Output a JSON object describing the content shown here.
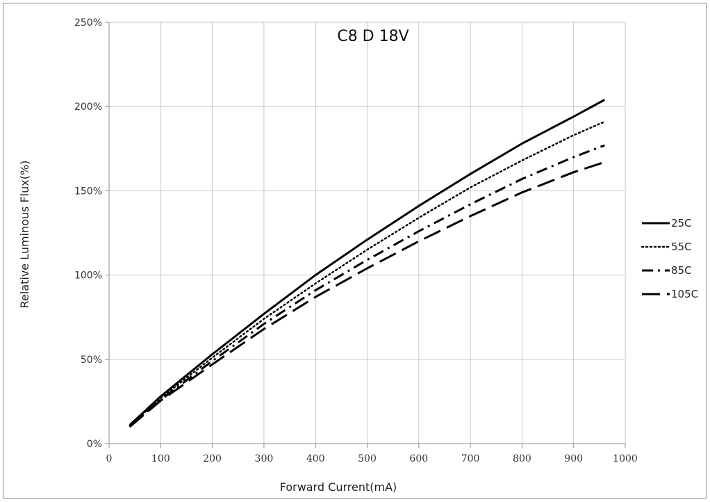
{
  "chart_data": {
    "type": "line",
    "title": "C8 D 18V",
    "xlabel": "Forward Current(mA)",
    "ylabel": "Relative Luminous Flux(%)",
    "xlim": [
      0,
      1000
    ],
    "ylim": [
      0,
      250
    ],
    "x_ticks": [
      0,
      100,
      200,
      300,
      400,
      500,
      600,
      700,
      800,
      900,
      1000
    ],
    "y_ticks": [
      0,
      50,
      100,
      150,
      200,
      250
    ],
    "y_tick_labels": [
      "0%",
      "50%",
      "100%",
      "150%",
      "200%",
      "250%"
    ],
    "grid": true,
    "legend_position": "right",
    "series": [
      {
        "name": "25C",
        "style": "solid",
        "x": [
          40,
          100,
          200,
          300,
          400,
          500,
          600,
          700,
          800,
          900,
          960
        ],
        "y": [
          11,
          28,
          53,
          77,
          100,
          121,
          141,
          160,
          178,
          194,
          204
        ]
      },
      {
        "name": "55C",
        "style": "dotted",
        "x": [
          40,
          100,
          200,
          300,
          400,
          500,
          600,
          700,
          800,
          900,
          960
        ],
        "y": [
          10.5,
          27,
          51,
          74,
          95,
          115,
          134,
          152,
          168,
          183,
          191
        ]
      },
      {
        "name": "85C",
        "style": "dash-dot",
        "x": [
          40,
          100,
          200,
          300,
          400,
          500,
          600,
          700,
          800,
          900,
          960
        ],
        "y": [
          10,
          26,
          49,
          71,
          91,
          109,
          126,
          142,
          157,
          170,
          177
        ]
      },
      {
        "name": "105C",
        "style": "long-dash",
        "x": [
          40,
          100,
          200,
          300,
          400,
          500,
          600,
          700,
          800,
          900,
          960
        ],
        "y": [
          10,
          25.5,
          47,
          68,
          87,
          104,
          120,
          135,
          149,
          161,
          167
        ]
      }
    ]
  }
}
